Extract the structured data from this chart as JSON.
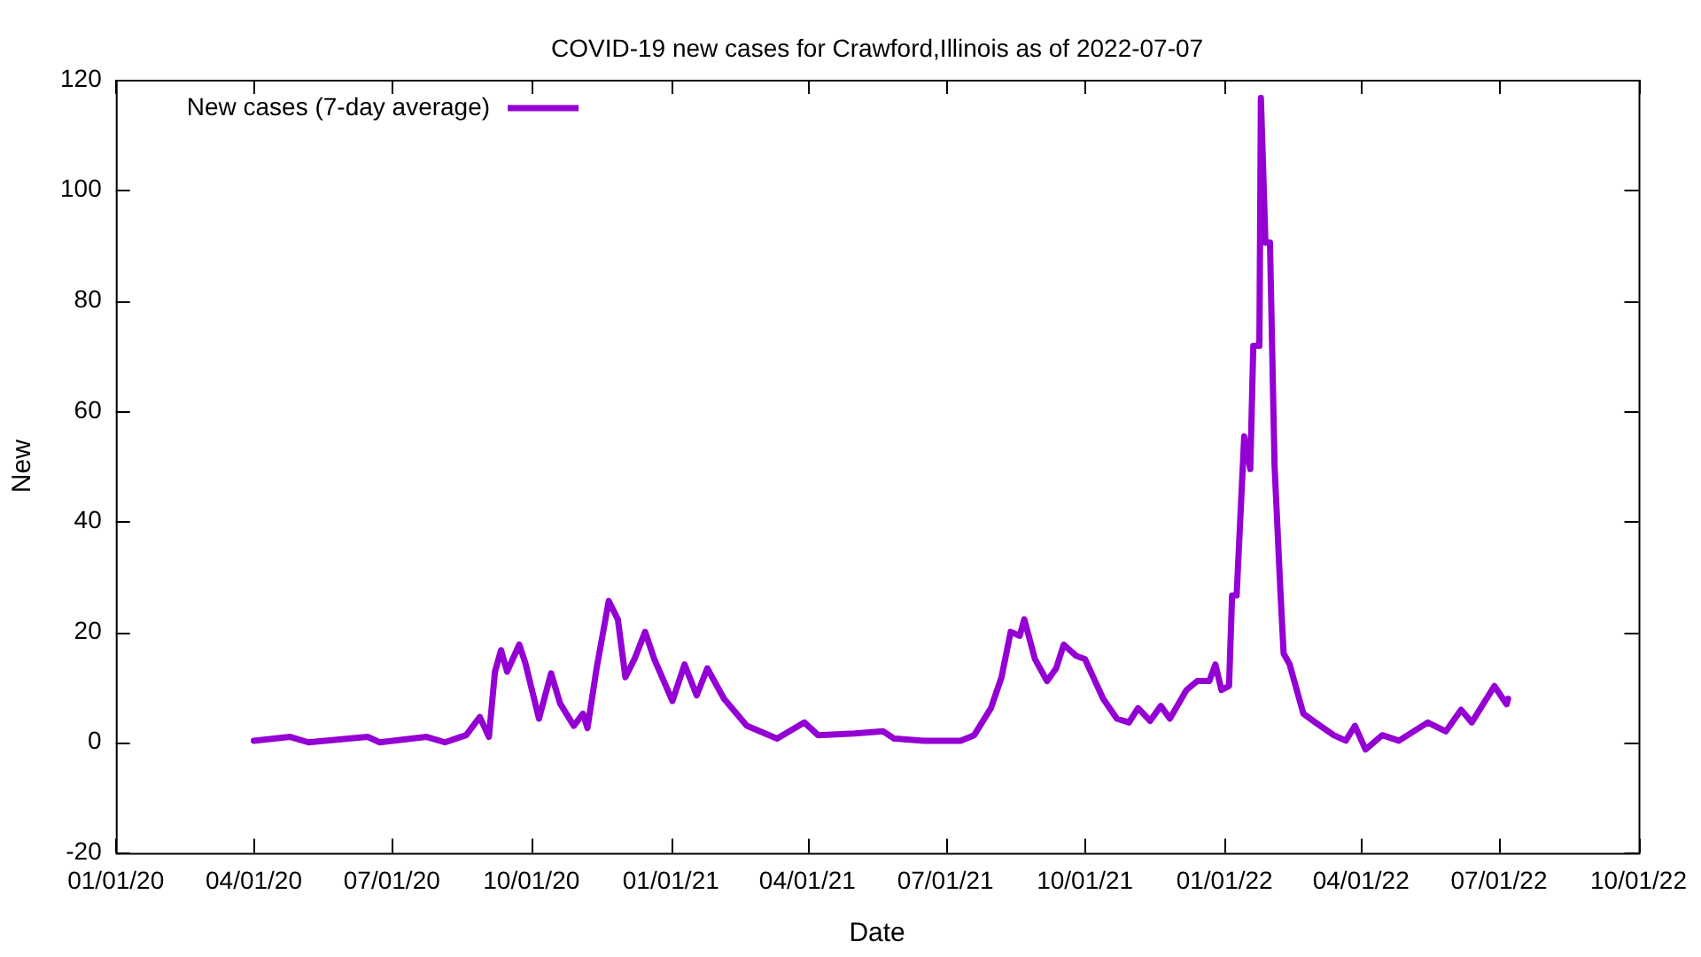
{
  "chart_data": {
    "type": "line",
    "title": "COVID-19 new cases for Crawford,Illinois as of 2022-07-07",
    "xlabel": "Date",
    "ylabel": "New",
    "x": [
      "2020-04-01",
      "2020-04-25",
      "2020-05-07",
      "2020-06-15",
      "2020-06-23",
      "2020-07-24",
      "2020-08-05",
      "2020-08-19",
      "2020-08-28",
      "2020-09-03",
      "2020-09-07",
      "2020-09-11",
      "2020-09-15",
      "2020-09-23",
      "2020-09-27",
      "2020-10-06",
      "2020-10-14",
      "2020-10-20",
      "2020-10-29",
      "2020-11-04",
      "2020-11-07",
      "2020-11-13",
      "2020-11-21",
      "2020-11-27",
      "2020-12-02",
      "2020-12-08",
      "2020-12-15",
      "2020-12-21",
      "2021-01-02",
      "2021-01-10",
      "2021-01-18",
      "2021-01-25",
      "2021-02-05",
      "2021-02-20",
      "2021-03-12",
      "2021-03-30",
      "2021-04-08",
      "2021-05-02",
      "2021-05-21",
      "2021-05-28",
      "2021-06-17",
      "2021-07-11",
      "2021-07-20",
      "2021-07-31",
      "2021-08-07",
      "2021-08-13",
      "2021-08-19",
      "2021-08-22",
      "2021-08-29",
      "2021-09-06",
      "2021-09-12",
      "2021-09-17",
      "2021-09-25",
      "2021-10-01",
      "2021-10-13",
      "2021-10-22",
      "2021-10-30",
      "2021-11-05",
      "2021-11-13",
      "2021-11-20",
      "2021-11-26",
      "2021-12-07",
      "2021-12-14",
      "2021-12-22",
      "2021-12-26",
      "2021-12-30",
      "2022-01-04",
      "2022-01-06",
      "2022-01-09",
      "2022-01-14",
      "2022-01-18",
      "2022-01-20",
      "2022-01-24",
      "2022-01-25",
      "2022-01-28",
      "2022-01-31",
      "2022-02-03",
      "2022-02-07",
      "2022-02-09",
      "2022-02-13",
      "2022-02-16",
      "2022-02-22",
      "2022-03-02",
      "2022-03-14",
      "2022-03-22",
      "2022-03-28",
      "2022-04-04",
      "2022-04-15",
      "2022-04-26",
      "2022-05-15",
      "2022-05-27",
      "2022-06-06",
      "2022-06-13",
      "2022-06-28",
      "2022-07-06",
      "2022-07-07"
    ],
    "series": [
      {
        "name": "New cases (7-day average)",
        "color": "#9400d3",
        "values": [
          0.3,
          1,
          0,
          1,
          0,
          1,
          0,
          1.3,
          4.6,
          1,
          12.8,
          16.7,
          12.8,
          17.7,
          14.4,
          4.3,
          12.5,
          7,
          3,
          5.2,
          2.6,
          13.4,
          25.6,
          22.3,
          11.8,
          15.1,
          20,
          15.1,
          7.5,
          14.1,
          8.5,
          13.4,
          7.9,
          3,
          0.7,
          3.6,
          1.3,
          1.6,
          2,
          0.7,
          0.3,
          0.3,
          1.3,
          6.2,
          11.8,
          20,
          19.3,
          22.3,
          15.1,
          11.1,
          13.4,
          17.7,
          15.7,
          15.1,
          7.9,
          4.3,
          3.6,
          6.2,
          3.9,
          6.6,
          4.3,
          9.5,
          11.1,
          11.1,
          14.1,
          9.5,
          10.2,
          26.6,
          26.6,
          55.4,
          49.5,
          71.8,
          71.8,
          116.7,
          90.5,
          90.5,
          50.2,
          26.6,
          16.1,
          14.1,
          11.1,
          5.2,
          3.6,
          1.3,
          0.3,
          3,
          -1.3,
          1.3,
          0.3,
          3.6,
          2,
          5.9,
          3.6,
          10.2,
          6.9,
          7.9
        ]
      }
    ],
    "xlim": [
      "2020-01-01",
      "2022-10-01"
    ],
    "xticks": [
      {
        "value": "2020-01-01",
        "label": "01/01/20"
      },
      {
        "value": "2020-04-01",
        "label": "04/01/20"
      },
      {
        "value": "2020-07-01",
        "label": "07/01/20"
      },
      {
        "value": "2020-10-01",
        "label": "10/01/20"
      },
      {
        "value": "2021-01-01",
        "label": "01/01/21"
      },
      {
        "value": "2021-04-01",
        "label": "04/01/21"
      },
      {
        "value": "2021-07-01",
        "label": "07/01/21"
      },
      {
        "value": "2021-10-01",
        "label": "10/01/21"
      },
      {
        "value": "2022-01-01",
        "label": "01/01/22"
      },
      {
        "value": "2022-04-01",
        "label": "04/01/22"
      },
      {
        "value": "2022-07-01",
        "label": "07/01/22"
      },
      {
        "value": "2022-10-01",
        "label": "10/01/22"
      }
    ],
    "ylim": [
      -20,
      120
    ],
    "yticks": [
      -20,
      0,
      20,
      40,
      60,
      80,
      100,
      120
    ],
    "legend": "top left",
    "grid": false,
    "marker": "none",
    "line_style": "solid"
  }
}
